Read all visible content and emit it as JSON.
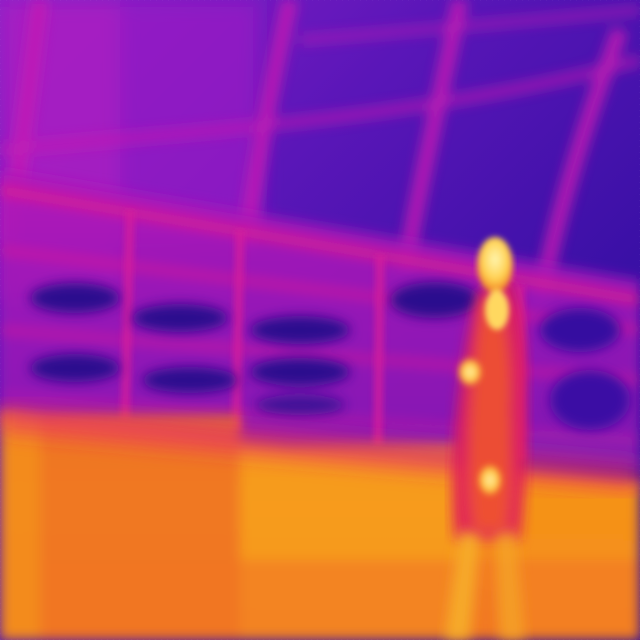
{
  "image": {
    "kind": "thermal-camera-frame",
    "palette": "ironbow",
    "palette_colors": {
      "coldest": "#1f0a8c",
      "cold": "#3c10a8",
      "cool": "#7a1cc2",
      "mid": "#c21ab8",
      "warm": "#e8207a",
      "warmer": "#f0602a",
      "hot": "#f59a18",
      "hottest": "#fff2a0"
    },
    "subjects": [
      "glass-roof-arches",
      "building-facade-windows",
      "warm-floor",
      "standing-person"
    ]
  }
}
